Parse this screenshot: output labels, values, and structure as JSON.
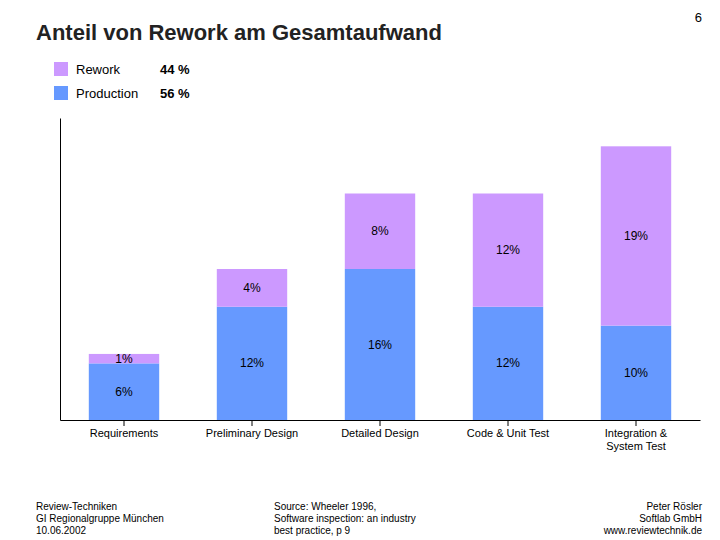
{
  "chart_data": {
    "type": "bar",
    "stacked": true,
    "title": "Anteil von Rework am Gesamtaufwand",
    "categories": [
      "Requirements",
      "Preliminary Design",
      "Detailed Design",
      "Code & Unit Test",
      "Integration &\nSystem Test"
    ],
    "series": [
      {
        "name": "Production",
        "color": "#6699FF",
        "values": [
          6,
          12,
          16,
          12,
          10
        ],
        "value_labels": [
          "6%",
          "12%",
          "16%",
          "12%",
          "10%"
        ],
        "share_label": "56 %"
      },
      {
        "name": "Rework",
        "color": "#CC99FF",
        "values": [
          1,
          4,
          8,
          12,
          19
        ],
        "value_labels": [
          "1%",
          "4%",
          "8%",
          "12%",
          "19%"
        ],
        "share_label": "44 %"
      }
    ],
    "ylim": [
      0,
      32
    ],
    "yticks": [],
    "tick_labels": "x",
    "grid": false,
    "legend": "top-left",
    "data_labels": true,
    "annotations": [
      "6",
      "Review-Techniken\nGI Regionalgruppe München\n10.06.2002",
      "Source: Wheeler 1996,\nSoftware inspection: an industry\nbest practice, p 9",
      "Peter Rösler\nSoftlab GmbH\nwww.reviewtechnik.de"
    ]
  }
}
